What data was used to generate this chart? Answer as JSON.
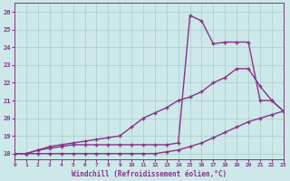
{
  "bg_color": "#cce8e8",
  "line_color": "#883388",
  "grid_color": "#aacccc",
  "xlim": [
    0,
    23
  ],
  "ylim": [
    17.7,
    26.5
  ],
  "xlabel": "Windchill (Refroidissement éolien,°C)",
  "yticks": [
    18,
    19,
    20,
    21,
    22,
    23,
    24,
    25,
    26
  ],
  "line1_x": [
    0,
    1,
    2,
    3,
    4,
    5,
    6,
    7,
    8,
    9,
    10,
    11,
    12,
    13,
    14,
    15,
    16,
    17,
    18,
    19,
    20,
    21,
    22,
    23
  ],
  "line1_y": [
    18.0,
    18.0,
    18.2,
    18.3,
    18.4,
    18.5,
    18.5,
    18.5,
    18.5,
    18.5,
    18.5,
    18.5,
    18.5,
    18.5,
    18.6,
    25.8,
    25.5,
    24.2,
    24.3,
    24.3,
    24.3,
    21.0,
    21.0,
    20.4
  ],
  "line2_x": [
    0,
    1,
    2,
    3,
    4,
    5,
    6,
    7,
    8,
    9,
    10,
    11,
    12,
    13,
    14,
    15,
    16,
    17,
    18,
    19,
    20,
    21,
    22,
    23
  ],
  "line2_y": [
    18.0,
    18.0,
    18.2,
    18.4,
    18.5,
    18.6,
    18.7,
    18.8,
    18.9,
    19.0,
    19.5,
    20.0,
    20.3,
    20.6,
    21.0,
    21.2,
    21.5,
    22.0,
    22.3,
    22.8,
    22.8,
    21.8,
    21.0,
    20.4
  ],
  "line3_x": [
    0,
    1,
    2,
    3,
    4,
    5,
    6,
    7,
    8,
    9,
    10,
    11,
    12,
    13,
    14,
    15,
    16,
    17,
    18,
    19,
    20,
    21,
    22,
    23
  ],
  "line3_y": [
    18.0,
    18.0,
    18.0,
    18.0,
    18.0,
    18.0,
    18.0,
    18.0,
    18.0,
    18.0,
    18.0,
    18.0,
    18.0,
    18.1,
    18.2,
    18.4,
    18.6,
    18.9,
    19.2,
    19.5,
    19.8,
    20.0,
    20.2,
    20.4
  ]
}
